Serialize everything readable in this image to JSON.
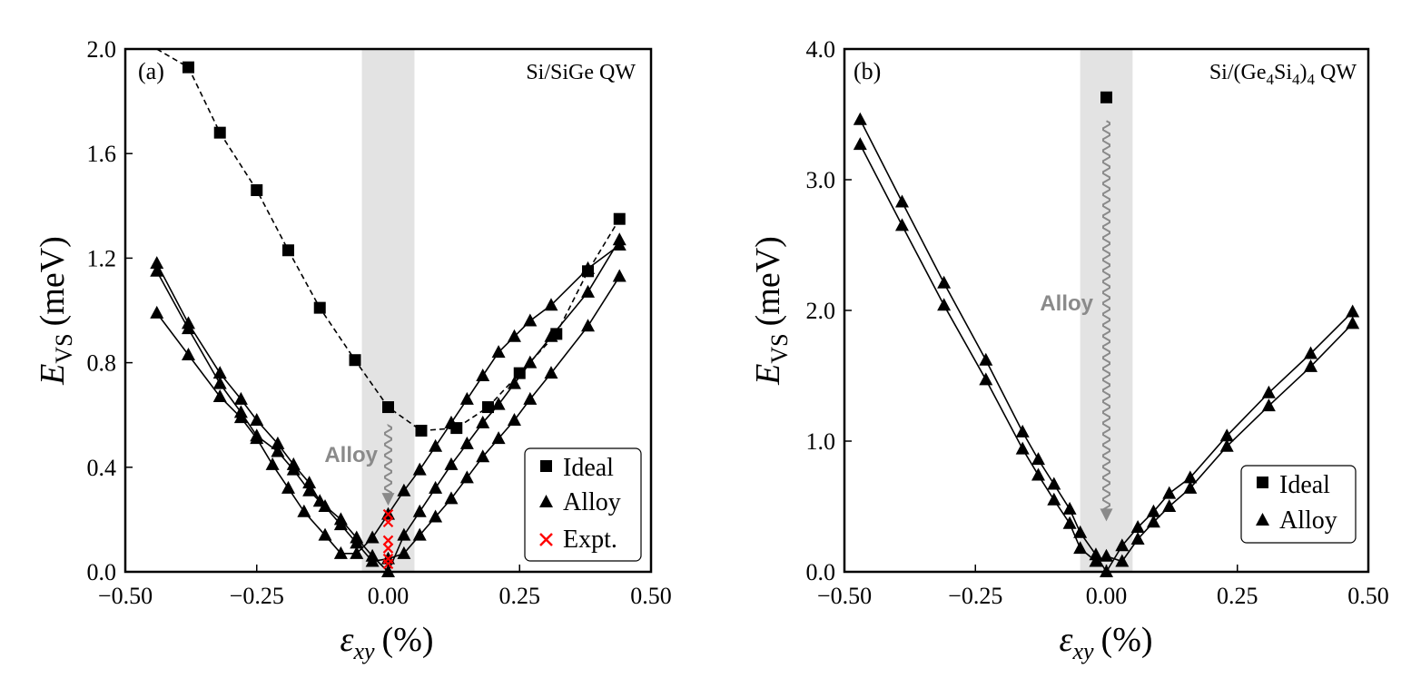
{
  "chart_data": [
    {
      "type": "line",
      "panel_label": "(a)",
      "annotation": "Si/SiGe QW",
      "xlabel_main": "ε",
      "xlabel_sub": "xy",
      "xlabel_unit": "(%)",
      "ylabel_main": "E",
      "ylabel_sub": "VS",
      "ylabel_unit": "(meV)",
      "xlim": [
        -0.5,
        0.5
      ],
      "ylim": [
        0,
        2.0
      ],
      "xticks": [
        -0.5,
        -0.25,
        0.0,
        0.25,
        0.5
      ],
      "xtick_labels": [
        "−0.50",
        "−0.25",
        "0.00",
        "0.25",
        "0.50"
      ],
      "yticks": [
        0,
        0.4,
        0.8,
        1.2,
        1.6,
        2.0
      ],
      "ytick_labels": [
        "0.0",
        "0.4",
        "0.8",
        "1.2",
        "1.6",
        "2.0"
      ],
      "shaded_x": [
        -0.05,
        0.05
      ],
      "arrow_text": "Alloy",
      "arrow_x": 0.0,
      "arrow_y": [
        0.56,
        0.26
      ],
      "legend": [
        "Ideal",
        "Alloy",
        "Expt."
      ],
      "series": [
        {
          "name": "Ideal",
          "marker": "square",
          "style": "dashed",
          "x": [
            -0.44,
            -0.38,
            -0.32,
            -0.25,
            -0.19,
            -0.13,
            -0.063,
            0.0,
            0.063,
            0.13,
            0.19,
            0.25,
            0.32,
            0.38,
            0.44
          ],
          "y": [
            2.01,
            1.93,
            1.68,
            1.46,
            1.23,
            1.01,
            0.81,
            0.63,
            0.54,
            0.55,
            0.63,
            0.76,
            0.91,
            1.15,
            1.35
          ]
        },
        {
          "name": "Alloy",
          "marker": "triangle",
          "style": "solid",
          "x": [
            -0.44,
            -0.38,
            -0.32,
            -0.28,
            -0.25,
            -0.21,
            -0.18,
            -0.15,
            -0.13,
            -0.09,
            -0.06,
            -0.03,
            0.0,
            0.03,
            0.06,
            0.09,
            0.12,
            0.15,
            0.18,
            0.21,
            0.24,
            0.27,
            0.31,
            0.38,
            0.44
          ],
          "y": [
            1.18,
            0.95,
            0.76,
            0.66,
            0.58,
            0.49,
            0.41,
            0.34,
            0.27,
            0.2,
            0.13,
            0.06,
            0.0,
            0.14,
            0.23,
            0.32,
            0.41,
            0.49,
            0.57,
            0.64,
            0.72,
            0.8,
            0.9,
            1.07,
            1.27
          ]
        },
        {
          "name": "Alloy",
          "marker": "triangle",
          "style": "solid",
          "x": [
            -0.44,
            -0.38,
            -0.32,
            -0.28,
            -0.25,
            -0.21,
            -0.18,
            -0.15,
            -0.12,
            -0.09,
            -0.06,
            -0.03,
            0.0,
            0.03,
            0.06,
            0.09,
            0.12,
            0.15,
            0.18,
            0.21,
            0.24,
            0.27,
            0.31,
            0.38,
            0.44
          ],
          "y": [
            1.15,
            0.93,
            0.72,
            0.61,
            0.52,
            0.46,
            0.39,
            0.31,
            0.25,
            0.18,
            0.11,
            0.04,
            0.05,
            0.07,
            0.14,
            0.21,
            0.28,
            0.36,
            0.44,
            0.51,
            0.58,
            0.66,
            0.76,
            0.94,
            1.13
          ]
        },
        {
          "name": "Alloy",
          "marker": "triangle",
          "style": "solid",
          "x": [
            -0.44,
            -0.38,
            -0.32,
            -0.28,
            -0.25,
            -0.22,
            -0.19,
            -0.16,
            -0.12,
            -0.09,
            -0.06,
            -0.03,
            0.0,
            0.03,
            0.06,
            0.09,
            0.12,
            0.15,
            0.18,
            0.21,
            0.24,
            0.27,
            0.31,
            0.38,
            0.44
          ],
          "y": [
            0.99,
            0.83,
            0.67,
            0.59,
            0.51,
            0.41,
            0.32,
            0.23,
            0.14,
            0.07,
            0.07,
            0.13,
            0.22,
            0.31,
            0.39,
            0.48,
            0.57,
            0.66,
            0.75,
            0.84,
            0.9,
            0.96,
            1.02,
            1.16,
            1.25
          ]
        },
        {
          "name": "Expt.",
          "marker": "x",
          "style": "none",
          "color": "#ff0000",
          "x": [
            0.0,
            0.0,
            0.0,
            0.0,
            0.0,
            0.0
          ],
          "y": [
            0.22,
            0.19,
            0.12,
            0.09,
            0.05,
            0.03
          ]
        }
      ]
    },
    {
      "type": "line",
      "panel_label": "(b)",
      "annotation_prefix": "Si/(Ge",
      "annotation_s1": "4",
      "annotation_mid": "Si",
      "annotation_s2": "4",
      "annotation_close": ")",
      "annotation_s3": "4",
      "annotation_suffix": " QW",
      "xlabel_main": "ε",
      "xlabel_sub": "xy",
      "xlabel_unit": "(%)",
      "ylabel_main": "E",
      "ylabel_sub": "VS",
      "ylabel_unit": "(meV)",
      "xlim": [
        -0.5,
        0.5
      ],
      "ylim": [
        0,
        4.0
      ],
      "xticks": [
        -0.5,
        -0.25,
        0.0,
        0.25,
        0.5
      ],
      "xtick_labels": [
        "−0.50",
        "−0.25",
        "0.00",
        "0.25",
        "0.50"
      ],
      "yticks": [
        0,
        1.0,
        2.0,
        3.0,
        4.0
      ],
      "ytick_labels": [
        "0.0",
        "1.0",
        "2.0",
        "3.0",
        "4.0"
      ],
      "shaded_x": [
        -0.05,
        0.05
      ],
      "arrow_text": "Alloy",
      "arrow_x": 0.0,
      "arrow_y": [
        3.45,
        0.4
      ],
      "legend": [
        "Ideal",
        "Alloy"
      ],
      "series": [
        {
          "name": "Ideal",
          "marker": "square",
          "style": "none",
          "x": [
            0.0
          ],
          "y": [
            3.63
          ]
        },
        {
          "name": "Alloy",
          "marker": "triangle",
          "style": "solid",
          "x": [
            -0.47,
            -0.39,
            -0.31,
            -0.23,
            -0.16,
            -0.13,
            -0.1,
            -0.07,
            -0.05,
            -0.02,
            0.0,
            0.03,
            0.06,
            0.09,
            0.12,
            0.16,
            0.23,
            0.31,
            0.39,
            0.47
          ],
          "y": [
            3.46,
            2.83,
            2.21,
            1.62,
            1.07,
            0.86,
            0.67,
            0.48,
            0.3,
            0.13,
            0.0,
            0.2,
            0.34,
            0.46,
            0.6,
            0.72,
            1.04,
            1.37,
            1.67,
            1.99
          ]
        },
        {
          "name": "Alloy",
          "marker": "triangle",
          "style": "solid",
          "x": [
            -0.47,
            -0.39,
            -0.31,
            -0.23,
            -0.16,
            -0.13,
            -0.1,
            -0.07,
            -0.05,
            -0.02,
            0.0,
            0.03,
            0.06,
            0.09,
            0.12,
            0.16,
            0.23,
            0.31,
            0.39,
            0.47
          ],
          "y": [
            3.27,
            2.65,
            2.04,
            1.47,
            0.94,
            0.74,
            0.55,
            0.37,
            0.18,
            0.08,
            0.12,
            0.08,
            0.25,
            0.38,
            0.5,
            0.64,
            0.96,
            1.27,
            1.57,
            1.9
          ]
        }
      ]
    }
  ]
}
